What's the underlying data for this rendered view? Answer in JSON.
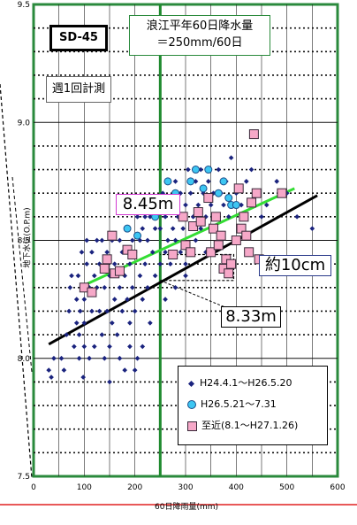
{
  "chart_data": {
    "type": "scatter",
    "station": "SD-45",
    "rain_note_line1": "浪江平年60日降水量",
    "rain_note_line2": "＝250mm/60日",
    "frequency_note": "週1回計測",
    "xlabel": "60日降雨量(mm)",
    "ylabel": "地下水位(O.P.m)",
    "xlim": [
      0,
      600
    ],
    "ylim": [
      7.5,
      9.5
    ],
    "x_ticks": [
      "0",
      "100",
      "200",
      "300",
      "400",
      "500",
      "600"
    ],
    "y_ticks": [
      "7.5",
      "8.0",
      "8.5",
      "9.0",
      "9.5"
    ],
    "reference_x": 250,
    "annotations": {
      "upper": "8.45m",
      "diff": "約10cm",
      "lower": "8.33m"
    },
    "colors": {
      "series1": "#1a237e",
      "series2": "#3dc6f2",
      "series3": "#f6a8c8",
      "trend_recent": "#33dd33",
      "trend_all": "#000000",
      "ref_line": "#1f8a2e"
    },
    "trend_lines": [
      {
        "kind": "recent",
        "x": [
          100,
          515
        ],
        "y": [
          8.31,
          8.72
        ]
      },
      {
        "kind": "all",
        "x": [
          30,
          560
        ],
        "y": [
          8.06,
          8.69
        ]
      }
    ],
    "series": [
      {
        "name": "H24.4.1～H26.5.20",
        "marker": "diamond",
        "points": [
          [
            30,
            7.95
          ],
          [
            35,
            7.92
          ],
          [
            40,
            8.0
          ],
          [
            55,
            8.0
          ],
          [
            60,
            7.95
          ],
          [
            65,
            8.1
          ],
          [
            70,
            8.2
          ],
          [
            72,
            8.3
          ],
          [
            75,
            8.35
          ],
          [
            80,
            8.05
          ],
          [
            85,
            8.15
          ],
          [
            85,
            8.25
          ],
          [
            88,
            8.35
          ],
          [
            90,
            8.0
          ],
          [
            90,
            8.1
          ],
          [
            92,
            8.2
          ],
          [
            95,
            8.3
          ],
          [
            95,
            8.45
          ],
          [
            98,
            7.92
          ],
          [
            100,
            8.05
          ],
          [
            100,
            8.15
          ],
          [
            100,
            8.25
          ],
          [
            105,
            8.4
          ],
          [
            105,
            8.5
          ],
          [
            110,
            8.0
          ],
          [
            110,
            8.3
          ],
          [
            115,
            8.45
          ],
          [
            115,
            8.2
          ],
          [
            120,
            8.05
          ],
          [
            120,
            8.35
          ],
          [
            125,
            8.5
          ],
          [
            125,
            8.3
          ],
          [
            130,
            8.2
          ],
          [
            130,
            8.4
          ],
          [
            135,
            8.1
          ],
          [
            135,
            8.5
          ],
          [
            140,
            8.0
          ],
          [
            140,
            8.3
          ],
          [
            145,
            8.45
          ],
          [
            145,
            8.2
          ],
          [
            150,
            8.35
          ],
          [
            150,
            8.05
          ],
          [
            155,
            8.5
          ],
          [
            160,
            8.25
          ],
          [
            160,
            8.4
          ],
          [
            165,
            8.1
          ],
          [
            170,
            8.3
          ],
          [
            170,
            8.5
          ],
          [
            175,
            8.2
          ],
          [
            175,
            8.45
          ],
          [
            180,
            7.95
          ],
          [
            180,
            8.35
          ],
          [
            185,
            8.55
          ],
          [
            185,
            8.25
          ],
          [
            190,
            8.15
          ],
          [
            190,
            8.4
          ],
          [
            195,
            8.5
          ],
          [
            195,
            8.3
          ],
          [
            200,
            8.2
          ],
          [
            200,
            8.45
          ],
          [
            205,
            8.6
          ],
          [
            205,
            8.0
          ],
          [
            210,
            8.35
          ],
          [
            210,
            8.5
          ],
          [
            215,
            8.25
          ],
          [
            215,
            8.55
          ],
          [
            220,
            8.6
          ],
          [
            220,
            8.4
          ],
          [
            225,
            8.3
          ],
          [
            225,
            8.5
          ],
          [
            230,
            8.6
          ],
          [
            235,
            8.45
          ],
          [
            240,
            8.35
          ],
          [
            240,
            8.55
          ],
          [
            245,
            8.65
          ],
          [
            250,
            8.4
          ],
          [
            250,
            8.55
          ],
          [
            255,
            8.7
          ],
          [
            260,
            8.45
          ],
          [
            260,
            8.6
          ],
          [
            265,
            8.5
          ],
          [
            270,
            8.65
          ],
          [
            270,
            8.4
          ],
          [
            275,
            8.55
          ],
          [
            280,
            8.75
          ],
          [
            280,
            8.5
          ],
          [
            285,
            8.6
          ],
          [
            290,
            8.45
          ],
          [
            290,
            8.7
          ],
          [
            295,
            8.55
          ],
          [
            300,
            8.65
          ],
          [
            300,
            8.4
          ],
          [
            305,
            8.8
          ],
          [
            310,
            8.55
          ],
          [
            310,
            8.7
          ],
          [
            315,
            8.6
          ],
          [
            320,
            8.5
          ],
          [
            320,
            8.75
          ],
          [
            325,
            8.65
          ],
          [
            330,
            8.55
          ],
          [
            330,
            8.8
          ],
          [
            335,
            8.7
          ],
          [
            340,
            8.6
          ],
          [
            340,
            8.45
          ],
          [
            345,
            8.75
          ],
          [
            350,
            8.65
          ],
          [
            350,
            8.55
          ],
          [
            355,
            8.7
          ],
          [
            360,
            8.6
          ],
          [
            365,
            8.8
          ],
          [
            370,
            8.7
          ],
          [
            375,
            8.65
          ],
          [
            380,
            8.75
          ],
          [
            385,
            8.6
          ],
          [
            390,
            8.85
          ],
          [
            400,
            8.7
          ],
          [
            410,
            8.65
          ],
          [
            420,
            8.75
          ],
          [
            430,
            8.8
          ],
          [
            440,
            8.7
          ],
          [
            450,
            8.6
          ],
          [
            460,
            8.65
          ],
          [
            480,
            8.75
          ],
          [
            500,
            8.7
          ],
          [
            520,
            8.6
          ],
          [
            550,
            8.55
          ],
          [
            150,
            7.9
          ],
          [
            170,
            8.0
          ],
          [
            190,
            8.05
          ],
          [
            155,
            8.15
          ],
          [
            200,
            7.95
          ],
          [
            215,
            8.05
          ],
          [
            230,
            8.15
          ],
          [
            260,
            8.25
          ],
          [
            280,
            8.3
          ],
          [
            300,
            8.35
          ]
        ]
      },
      {
        "name": "H26.5.21～7.31",
        "marker": "circle",
        "points": [
          [
            185,
            8.55
          ],
          [
            205,
            8.52
          ],
          [
            240,
            8.6
          ],
          [
            265,
            8.75
          ],
          [
            280,
            8.7
          ],
          [
            310,
            8.75
          ],
          [
            320,
            8.8
          ],
          [
            335,
            8.72
          ],
          [
            345,
            8.8
          ],
          [
            365,
            8.7
          ],
          [
            375,
            8.75
          ],
          [
            385,
            8.68
          ],
          [
            390,
            8.65
          ],
          [
            400,
            8.65
          ]
        ]
      },
      {
        "name": "至近(8.1～H27.1.26)",
        "marker": "square",
        "points": [
          [
            100,
            8.3
          ],
          [
            115,
            8.28
          ],
          [
            140,
            8.38
          ],
          [
            145,
            8.42
          ],
          [
            155,
            8.52
          ],
          [
            160,
            8.36
          ],
          [
            170,
            8.37
          ],
          [
            185,
            8.46
          ],
          [
            195,
            8.44
          ],
          [
            275,
            8.44
          ],
          [
            295,
            8.6
          ],
          [
            300,
            8.48
          ],
          [
            310,
            8.45
          ],
          [
            315,
            8.56
          ],
          [
            325,
            8.62
          ],
          [
            330,
            8.58
          ],
          [
            345,
            8.68
          ],
          [
            350,
            8.45
          ],
          [
            355,
            8.55
          ],
          [
            360,
            8.6
          ],
          [
            365,
            8.48
          ],
          [
            370,
            8.52
          ],
          [
            375,
            8.38
          ],
          [
            380,
            8.42
          ],
          [
            385,
            8.36
          ],
          [
            390,
            8.4
          ],
          [
            400,
            8.5
          ],
          [
            405,
            8.72
          ],
          [
            410,
            8.55
          ],
          [
            415,
            8.6
          ],
          [
            420,
            8.52
          ],
          [
            425,
            8.45
          ],
          [
            430,
            8.66
          ],
          [
            435,
            8.95
          ],
          [
            440,
            8.7
          ],
          [
            445,
            8.42
          ],
          [
            490,
            8.7
          ]
        ]
      }
    ]
  }
}
